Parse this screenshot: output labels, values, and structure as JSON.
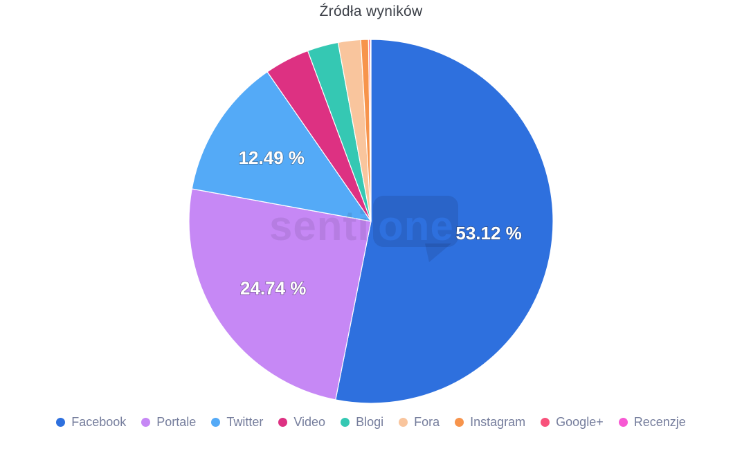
{
  "title": "Źródła wyników",
  "watermark": {
    "prefix": "senti",
    "bubble": "one"
  },
  "chart_data": {
    "type": "pie",
    "title": "Źródła wyników",
    "unit": "%",
    "legend_position": "bottom",
    "grid": false,
    "slices": [
      {
        "name": "Facebook",
        "value": 53.12,
        "color": "#2e70de",
        "label": "53.12 %"
      },
      {
        "name": "Portale",
        "value": 24.74,
        "color": "#c688f5",
        "label": "24.74 %"
      },
      {
        "name": "Twitter",
        "value": 12.49,
        "color": "#54aaf7",
        "label": "12.49 %"
      },
      {
        "name": "Video",
        "value": 4.0,
        "color": "#dd3182",
        "label": ""
      },
      {
        "name": "Blogi",
        "value": 2.75,
        "color": "#35c8b3",
        "label": ""
      },
      {
        "name": "Fora",
        "value": 2.0,
        "color": "#f9c59d",
        "label": ""
      },
      {
        "name": "Instagram",
        "value": 0.68,
        "color": "#f7944c",
        "label": ""
      },
      {
        "name": "Google+",
        "value": 0.14,
        "color": "#f8527b",
        "label": ""
      },
      {
        "name": "Recenzje",
        "value": 0.08,
        "color": "#f759d3",
        "label": ""
      }
    ]
  }
}
